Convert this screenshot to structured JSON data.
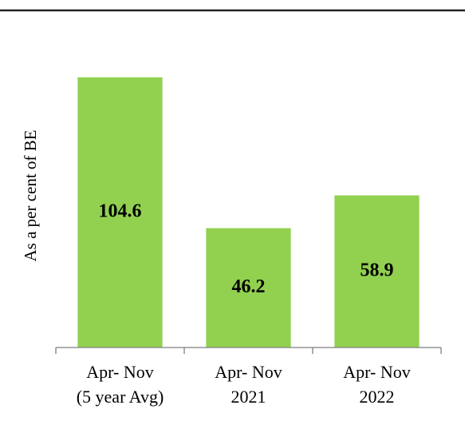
{
  "chart_data": {
    "type": "bar",
    "y_axis_label": "As a per cent of BE",
    "categories": [
      [
        "Apr- Nov",
        "(5 year Avg)"
      ],
      [
        "Apr- Nov",
        "2021"
      ],
      [
        "Apr- Nov",
        "2022"
      ]
    ],
    "values": [
      104.6,
      46.2,
      58.9
    ],
    "color": "#92d050",
    "ylim": [
      0,
      120
    ]
  }
}
